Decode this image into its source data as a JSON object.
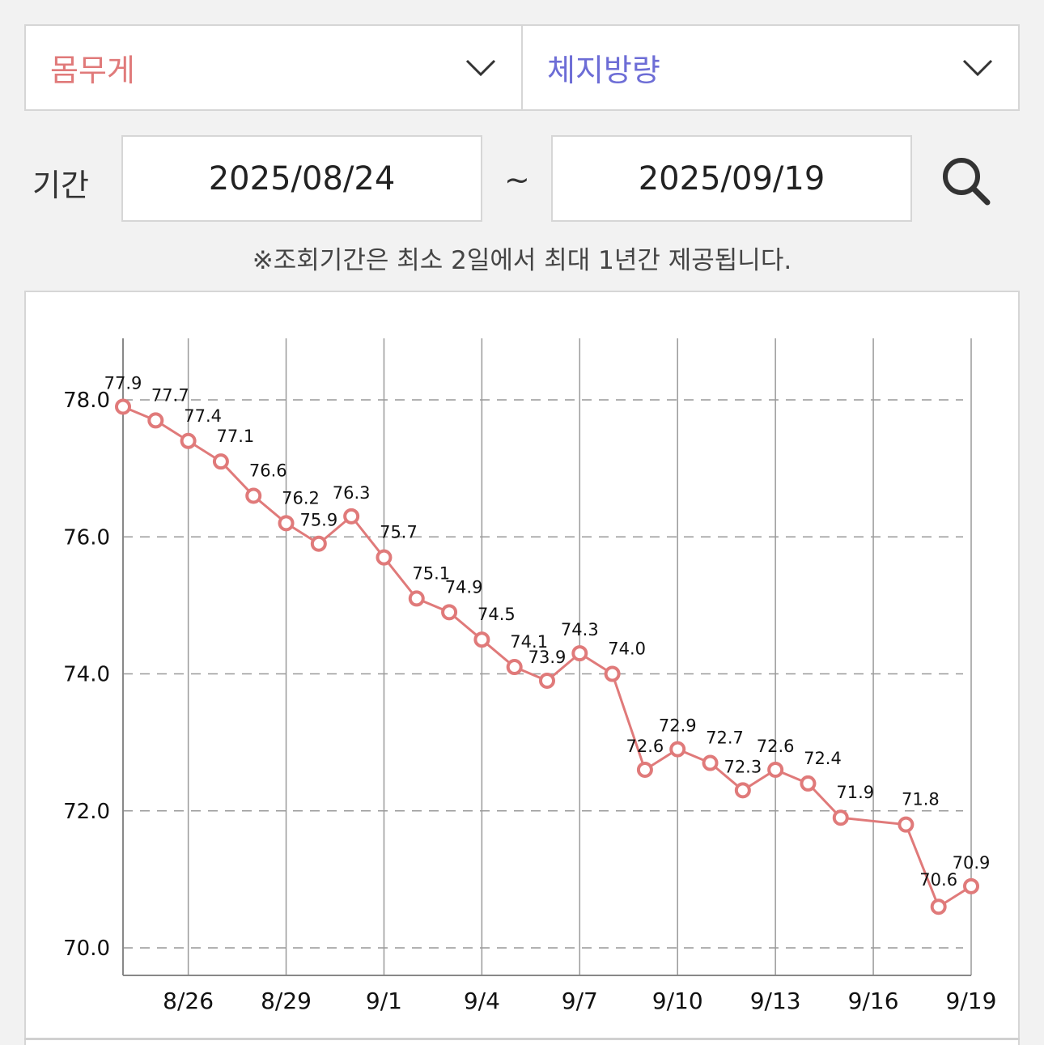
{
  "selectors": {
    "primary": {
      "label": "몸무게",
      "color": "#e07a7a"
    },
    "secondary": {
      "label": "체지방량",
      "color": "#6d6dd6"
    }
  },
  "period": {
    "label": "기간",
    "start": "2025/08/24",
    "separator": "~",
    "end": "2025/09/19"
  },
  "notice": "※조회기간은 최소 2일에서 최대 1년간 제공됩니다.",
  "chart_data": {
    "type": "line",
    "x": [
      "8/24",
      "8/25",
      "8/26",
      "8/27",
      "8/28",
      "8/29",
      "8/30",
      "8/31",
      "9/1",
      "9/2",
      "9/3",
      "9/4",
      "9/5",
      "9/6",
      "9/7",
      "9/8",
      "9/9",
      "9/10",
      "9/11",
      "9/12",
      "9/13",
      "9/14",
      "9/15",
      "9/17",
      "9/18",
      "9/19"
    ],
    "x_tick_labels": [
      "8/26",
      "8/29",
      "9/1",
      "9/4",
      "9/7",
      "9/10",
      "9/13",
      "9/16",
      "9/19"
    ],
    "y_ticks": [
      "70.0",
      "72.0",
      "74.0",
      "76.0",
      "78.0"
    ],
    "ylim": [
      70,
      78
    ],
    "series": [
      {
        "color": "#e07a7a",
        "values": [
          77.9,
          77.7,
          77.4,
          77.1,
          76.6,
          76.2,
          75.9,
          76.3,
          75.7,
          75.1,
          74.9,
          74.5,
          74.1,
          73.9,
          74.3,
          74.0,
          72.6,
          72.9,
          72.7,
          72.3,
          72.6,
          72.4,
          71.9,
          71.8,
          70.6,
          70.9
        ],
        "labels": [
          "77.9",
          "77.7",
          "77.4",
          "77.1",
          "76.6",
          "76.2",
          "75.9",
          "76.3",
          "75.7",
          "75.1",
          "74.9",
          "74.5",
          "74.1",
          "73.9",
          "74.3",
          "74.0",
          "72.6",
          "72.9",
          "72.7",
          "72.3",
          "72.6",
          "72.4",
          "71.9",
          "71.8",
          "70.6",
          "70.9"
        ]
      }
    ],
    "grid": {
      "horizontal_dashed": true,
      "vertical_solid": true
    }
  }
}
